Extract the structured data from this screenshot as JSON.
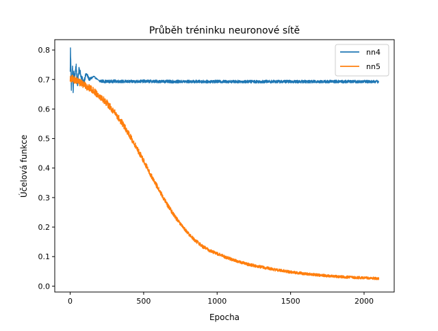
{
  "chart_data": {
    "type": "line",
    "title": "Průběh tréninku neuronové sítě",
    "xlabel": "Epocha",
    "ylabel": "Účelová funkce",
    "xlim": [
      -105,
      2205
    ],
    "ylim": [
      -0.02,
      0.835
    ],
    "xticks": [
      0,
      500,
      1000,
      1500,
      2000
    ],
    "yticks": [
      0.0,
      0.1,
      0.2,
      0.3,
      0.4,
      0.5,
      0.6,
      0.7,
      0.8
    ],
    "xtick_labels": [
      "0",
      "500",
      "1000",
      "1500",
      "2000"
    ],
    "ytick_labels": [
      "0.0",
      "0.1",
      "0.2",
      "0.3",
      "0.4",
      "0.5",
      "0.6",
      "0.7",
      "0.8"
    ],
    "grid": false,
    "legend_position": "top-right",
    "series": [
      {
        "name": "nn4",
        "color": "#1f77b4",
        "x": [
          0,
          2,
          5,
          8,
          12,
          16,
          20,
          25,
          30,
          40,
          50,
          60,
          75,
          90,
          110,
          130,
          160,
          200,
          250,
          300,
          400,
          500,
          700,
          900,
          1100,
          1300,
          1500,
          1700,
          1900,
          2100
        ],
        "y": [
          0.72,
          0.8,
          0.74,
          0.67,
          0.71,
          0.74,
          0.66,
          0.73,
          0.7,
          0.75,
          0.68,
          0.74,
          0.71,
          0.69,
          0.72,
          0.7,
          0.71,
          0.695,
          0.693,
          0.694,
          0.693,
          0.694,
          0.693,
          0.693,
          0.693,
          0.693,
          0.693,
          0.693,
          0.693,
          0.693
        ],
        "noise": 0.005
      },
      {
        "name": "nn5",
        "color": "#ff7f0e",
        "x": [
          0,
          50,
          100,
          150,
          200,
          250,
          300,
          350,
          400,
          450,
          500,
          550,
          600,
          650,
          700,
          750,
          800,
          850,
          900,
          950,
          1000,
          1100,
          1200,
          1300,
          1400,
          1500,
          1600,
          1700,
          1800,
          1900,
          2000,
          2100
        ],
        "y": [
          0.705,
          0.695,
          0.68,
          0.665,
          0.645,
          0.62,
          0.59,
          0.555,
          0.515,
          0.47,
          0.425,
          0.375,
          0.33,
          0.285,
          0.245,
          0.21,
          0.18,
          0.155,
          0.135,
          0.12,
          0.11,
          0.09,
          0.075,
          0.065,
          0.055,
          0.048,
          0.042,
          0.037,
          0.033,
          0.03,
          0.028,
          0.026
        ],
        "noise": 0.012
      }
    ]
  }
}
